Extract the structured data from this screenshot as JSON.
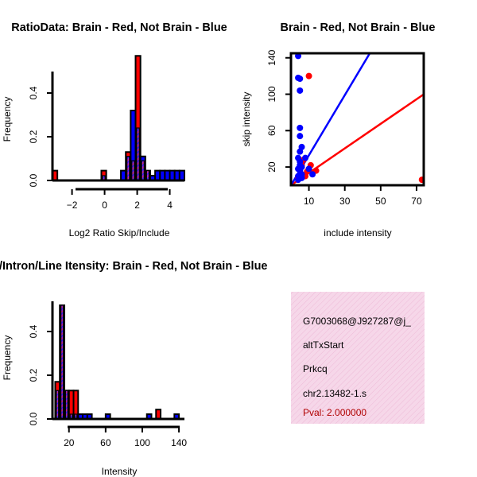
{
  "colors": {
    "red": "#ff0000",
    "blue": "#0000ff",
    "purple": "#a020f0",
    "pink_panel": "#f7dcec",
    "pval_text": "#b00000"
  },
  "chart_data": [
    {
      "id": "ratio_hist",
      "type": "bar",
      "title": "RatioData: Brain - Red, Not Brain - Blue",
      "xlabel": "Log2 Ratio Skip/Include",
      "ylabel": "Frequency",
      "xlim": [
        -3.2,
        4.9
      ],
      "ylim": [
        0,
        0.56
      ],
      "xticks": [
        -2,
        0,
        2,
        4
      ],
      "xtick_labels": [
        "−2",
        "0",
        "2",
        "4"
      ],
      "yticks": [
        0.0,
        0.2,
        0.4
      ],
      "ytick_labels": [
        "0.0",
        "0.2",
        "0.4"
      ],
      "bin_width": 0.3,
      "series": [
        {
          "name": "Brain",
          "color": "red",
          "bins": [
            [
              -3.2,
              0.045
            ],
            [
              -0.2,
              0.045
            ],
            [
              1.3,
              0.13
            ],
            [
              1.6,
              0.09
            ],
            [
              1.9,
              0.57
            ],
            [
              2.2,
              0.09
            ],
            [
              2.5,
              0.045
            ]
          ]
        },
        {
          "name": "Not Brain",
          "color": "blue",
          "bins": [
            [
              -0.2,
              0.022
            ],
            [
              1.0,
              0.045
            ],
            [
              1.3,
              0.11
            ],
            [
              1.6,
              0.32
            ],
            [
              1.9,
              0.24
            ],
            [
              2.2,
              0.11
            ],
            [
              2.5,
              0.045
            ],
            [
              2.8,
              0.022
            ],
            [
              3.1,
              0.045
            ],
            [
              3.4,
              0.045
            ],
            [
              3.7,
              0.045
            ],
            [
              4.0,
              0.045
            ],
            [
              4.3,
              0.045
            ],
            [
              4.6,
              0.045
            ]
          ]
        }
      ]
    },
    {
      "id": "scatter",
      "type": "scatter",
      "title": "Brain - Red, Not Brain - Blue",
      "xlabel": "include intensity",
      "ylabel": "skip intensity",
      "xlim": [
        0,
        74
      ],
      "ylim": [
        0,
        145
      ],
      "xticks": [
        10,
        30,
        50,
        70
      ],
      "yticks": [
        20,
        60,
        100,
        140
      ],
      "series": [
        {
          "name": "Brain",
          "color": "red",
          "points": [
            [
              10,
              120
            ],
            [
              6,
              22
            ],
            [
              7,
              28
            ],
            [
              10,
              18
            ],
            [
              11,
              22
            ],
            [
              12,
              14
            ],
            [
              14,
              16
            ],
            [
              9,
              15
            ],
            [
              5,
              10
            ],
            [
              6,
              12
            ],
            [
              8,
              10
            ],
            [
              4,
              8
            ],
            [
              73,
              6
            ]
          ]
        },
        {
          "name": "Not Brain",
          "color": "blue",
          "points": [
            [
              4,
              142
            ],
            [
              4,
              118
            ],
            [
              5,
              117
            ],
            [
              5,
              104
            ],
            [
              5,
              63
            ],
            [
              5,
              54
            ],
            [
              5,
              37
            ],
            [
              6,
              42
            ],
            [
              4,
              30
            ],
            [
              5,
              26
            ],
            [
              5,
              22
            ],
            [
              4,
              18
            ],
            [
              6,
              20
            ],
            [
              5,
              16
            ],
            [
              6,
              12
            ],
            [
              4,
              10
            ],
            [
              6,
              8
            ],
            [
              4,
              6
            ],
            [
              8,
              30
            ],
            [
              10,
              18
            ],
            [
              12,
              12
            ]
          ]
        }
      ],
      "lines": [
        {
          "name": "Brain fit",
          "color": "red",
          "slope": 1.35,
          "intercept": 0
        },
        {
          "name": "Not Brain fit",
          "color": "blue",
          "slope": 3.3,
          "intercept": 0
        }
      ]
    },
    {
      "id": "intensity_hist",
      "type": "bar",
      "title": "Exon/Intron/Line Itensity: Brain - Red, Not Brain - Blue",
      "xlabel": "Intensity",
      "ylabel": "Frequency",
      "xlim": [
        2,
        146
      ],
      "ylim": [
        0,
        0.56
      ],
      "xticks": [
        20,
        60,
        100,
        140
      ],
      "yticks": [
        0.0,
        0.2,
        0.4
      ],
      "ytick_labels": [
        "0.0",
        "0.2",
        "0.4"
      ],
      "bin_width": 5,
      "series": [
        {
          "name": "Brain",
          "color": "red",
          "bins": [
            [
              5,
              0.17
            ],
            [
              10,
              0.52
            ],
            [
              15,
              0.13
            ],
            [
              20,
              0.13
            ],
            [
              25,
              0.13
            ],
            [
              115,
              0.043
            ]
          ]
        },
        {
          "name": "Not Brain",
          "color": "blue",
          "bins": [
            [
              5,
              0.13
            ],
            [
              10,
              0.52
            ],
            [
              15,
              0.13
            ],
            [
              20,
              0.022
            ],
            [
              25,
              0.022
            ],
            [
              30,
              0.022
            ],
            [
              35,
              0.022
            ],
            [
              40,
              0.022
            ],
            [
              60,
              0.022
            ],
            [
              105,
              0.022
            ],
            [
              135,
              0.022
            ]
          ]
        }
      ]
    }
  ],
  "info_panel": {
    "event_id": "G7003068@J927287@j_",
    "event_type": "altTxStart",
    "gene": "Prkcq",
    "transcript": "chr2.13482-1.s",
    "pval": "Pval: 2.000000"
  }
}
